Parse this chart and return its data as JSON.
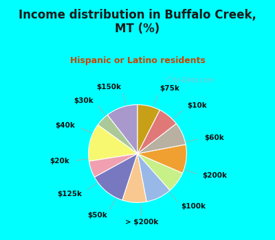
{
  "title": "Income distribution in Buffalo Creek,\nMT (%)",
  "subtitle": "Hispanic or Latino residents",
  "title_color": "#1a1a1a",
  "subtitle_color": "#cc4400",
  "bg_top": "#00ffff",
  "bg_chart_color": "#d0ede0",
  "watermark": "  City-Data.com",
  "labels": [
    "$75k",
    "$10k",
    "$60k",
    "$200k",
    "$100k",
    "> $200k",
    "$50k",
    "$125k",
    "$20k",
    "$40k",
    "$30k",
    "$150k"
  ],
  "values": [
    10.5,
    4.5,
    12.5,
    5.5,
    12.0,
    8.0,
    8.5,
    7.0,
    9.5,
    7.5,
    7.0,
    7.5
  ],
  "colors": [
    "#a898cc",
    "#aac898",
    "#f8f870",
    "#f0a0b0",
    "#7878c0",
    "#f8c890",
    "#98b8e8",
    "#c8f088",
    "#f0a030",
    "#b8b0a0",
    "#e07878",
    "#c8a018"
  ],
  "startangle": 90,
  "label_fontsize": 7.5,
  "label_color": "#111111"
}
